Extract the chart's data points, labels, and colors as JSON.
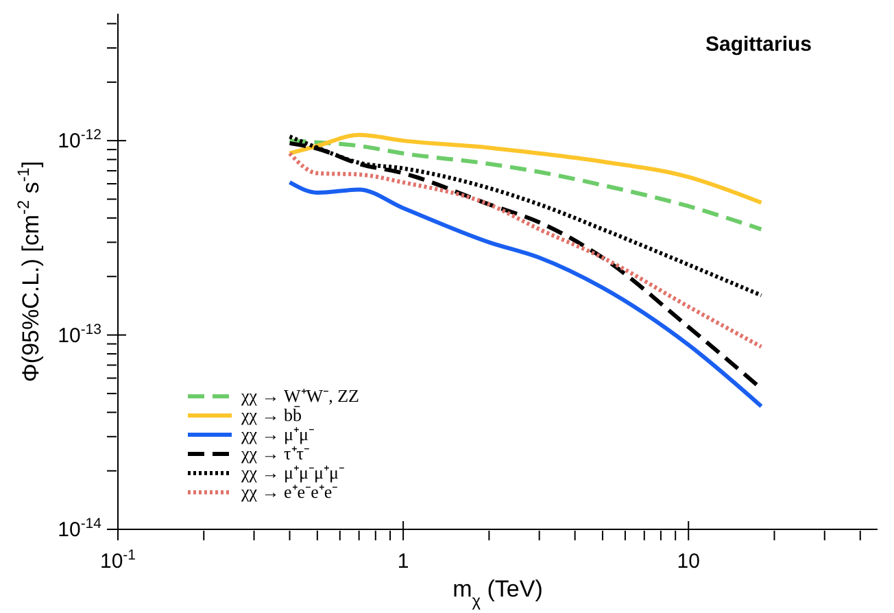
{
  "chart_data": {
    "type": "line",
    "title": "Sagittarius",
    "xlabel": "m$_{χ}$ (TeV)",
    "ylabel": "Φ(95%C.L.) [cm$^{-2}$ s$^{-1}$]",
    "log": "xy",
    "grid": false,
    "legend": "bottom left",
    "marker": "none",
    "x": [
      0.4,
      0.5,
      0.7,
      1,
      2,
      3,
      5,
      10,
      18
    ],
    "xlim": [
      0.1,
      46
    ],
    "xticks": [
      {
        "value": 0.1,
        "label": "10$^{-1}$"
      },
      {
        "value": 0.2,
        "label": null
      },
      {
        "value": 0.3,
        "label": null
      },
      {
        "value": 0.4,
        "label": null
      },
      {
        "value": 0.5,
        "label": null
      },
      {
        "value": 0.6,
        "label": null
      },
      {
        "value": 0.7,
        "label": null
      },
      {
        "value": 0.8,
        "label": null
      },
      {
        "value": 0.9,
        "label": null
      },
      1,
      {
        "value": 2,
        "label": null
      },
      {
        "value": 3,
        "label": null
      },
      {
        "value": 4,
        "label": null
      },
      {
        "value": 5,
        "label": null
      },
      {
        "value": 6,
        "label": null
      },
      {
        "value": 7,
        "label": null
      },
      {
        "value": 8,
        "label": null
      },
      {
        "value": 9,
        "label": null
      },
      10,
      {
        "value": 20,
        "label": null
      },
      {
        "value": 30,
        "label": null
      },
      {
        "value": 40,
        "label": null
      }
    ],
    "ylim": [
      1e-14,
      4.5e-12
    ],
    "yticks": [
      {
        "value": 1e-14,
        "label": "10$^{-14}$"
      },
      {
        "value": 2e-14,
        "label": null
      },
      {
        "value": 3e-14,
        "label": null
      },
      {
        "value": 4e-14,
        "label": null
      },
      {
        "value": 5e-14,
        "label": null
      },
      {
        "value": 6e-14,
        "label": null
      },
      {
        "value": 7e-14,
        "label": null
      },
      {
        "value": 8e-14,
        "label": null
      },
      {
        "value": 9e-14,
        "label": null
      },
      {
        "value": 1e-13,
        "label": "10$^{-13}$"
      },
      {
        "value": 2e-13,
        "label": null
      },
      {
        "value": 3e-13,
        "label": null
      },
      {
        "value": 4e-13,
        "label": null
      },
      {
        "value": 5e-13,
        "label": null
      },
      {
        "value": 6e-13,
        "label": null
      },
      {
        "value": 7e-13,
        "label": null
      },
      {
        "value": 8e-13,
        "label": null
      },
      {
        "value": 9e-13,
        "label": null
      },
      {
        "value": 1e-12,
        "label": "10$^{-12}$"
      },
      {
        "value": 2e-12,
        "label": null
      },
      {
        "value": 3e-12,
        "label": null
      },
      {
        "value": 4e-12,
        "label": null
      }
    ],
    "series": [
      {
        "name": "χχ → W⁺W⁻, ZZ",
        "color": "#6dcc6a",
        "line_style": "dashed",
        "values": [
          1e-12,
          9.8e-13,
          9.4e-13,
          8.6e-13,
          7.6e-13,
          6.9e-13,
          5.9e-13,
          4.6e-13,
          3.5e-13
        ]
      },
      {
        "name": "χχ → bb̄",
        "color": "#fcc52b",
        "line_style": "solid",
        "values": [
          8.6e-13,
          9.4e-13,
          1.07e-12,
          1e-12,
          9.2e-13,
          8.6e-13,
          7.8e-13,
          6.5e-13,
          4.8e-13
        ]
      },
      {
        "name": "χχ → μ⁺μ⁻",
        "color": "#1a5ff0",
        "line_style": "solid",
        "values": [
          6.1e-13,
          5.4e-13,
          5.6e-13,
          4.5e-13,
          3e-13,
          2.5e-13,
          1.75e-13,
          8.9e-14,
          4.3e-14
        ]
      },
      {
        "name": "χχ → τ⁺τ⁻",
        "color": "#000000",
        "line_style": "dashed",
        "values": [
          9.7e-13,
          9.1e-13,
          7.6e-13,
          6.8e-13,
          4.7e-13,
          3.8e-13,
          2.5e-13,
          1.1e-13,
          5.3e-14
        ]
      },
      {
        "name": "χχ → μ⁺μ⁻μ⁺μ⁻",
        "color": "#000000",
        "line_style": "dotted",
        "values": [
          1.05e-12,
          9.2e-13,
          7.7e-13,
          7.2e-13,
          5.7e-13,
          4.7e-13,
          3.5e-13,
          2.3e-13,
          1.6e-13
        ]
      },
      {
        "name": "χχ → e⁺e⁻e⁺e⁻",
        "color": "#e0736a",
        "line_style": "dotted",
        "values": [
          8.6e-13,
          6.8e-13,
          6.7e-13,
          6.1e-13,
          4.7e-13,
          3.5e-13,
          2.5e-13,
          1.4e-13,
          8.7e-14
        ]
      }
    ]
  }
}
